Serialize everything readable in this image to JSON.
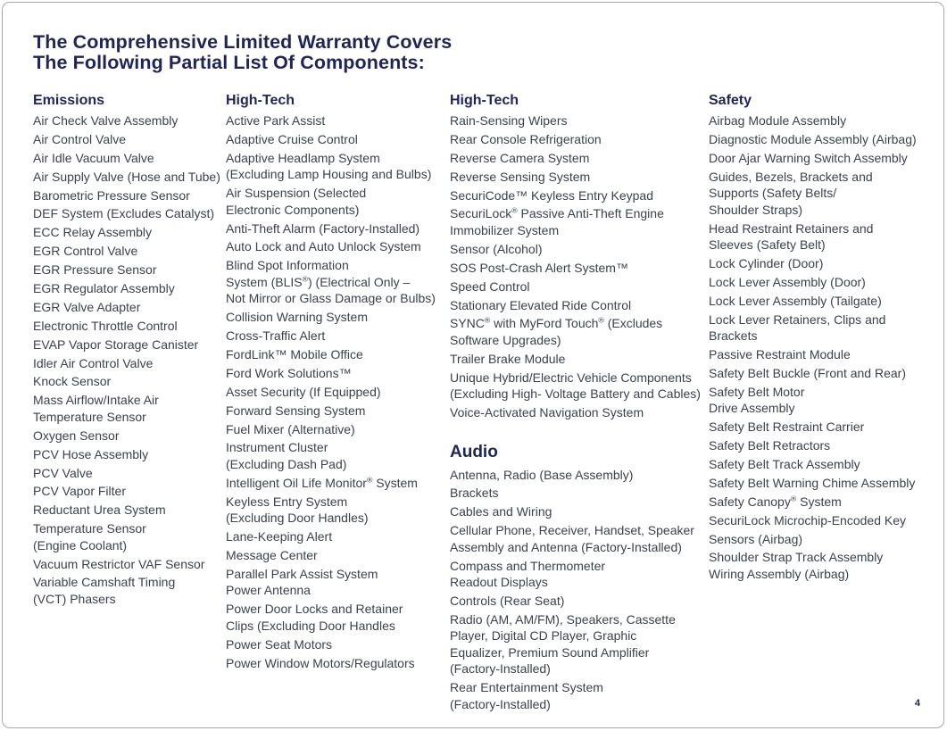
{
  "page": {
    "title_lines": [
      "The Comprehensive Limited Warranty Covers",
      "The Following Partial List Of Components:"
    ],
    "page_number": "4",
    "accent_color": "#1f2556",
    "body_text_color": "#3a424d"
  },
  "columns": [
    {
      "sections": [
        {
          "heading": "Emissions",
          "large_heading": false,
          "items": [
            [
              "Air Check Valve Assembly"
            ],
            [
              "Air Control Valve"
            ],
            [
              "Air Idle Vacuum Valve"
            ],
            [
              "Air Supply Valve (Hose and Tube)"
            ],
            [
              "Barometric Pressure Sensor"
            ],
            [
              "DEF System (Excludes Catalyst)"
            ],
            [
              "ECC Relay Assembly"
            ],
            [
              "EGR Control Valve"
            ],
            [
              "EGR Pressure Sensor"
            ],
            [
              "EGR Regulator Assembly"
            ],
            [
              "EGR Valve Adapter"
            ],
            [
              "Electronic Throttle Control"
            ],
            [
              "EVAP Vapor Storage Canister"
            ],
            [
              "Idler Air Control Valve"
            ],
            [
              "Knock Sensor"
            ],
            [
              "Mass Airflow/Intake Air",
              "Temperature Sensor"
            ],
            [
              "Oxygen Sensor"
            ],
            [
              "PCV Hose Assembly"
            ],
            [
              "PCV Valve"
            ],
            [
              "PCV Vapor Filter"
            ],
            [
              "Reductant Urea System"
            ],
            [
              "Temperature Sensor",
              "(Engine Coolant)"
            ],
            [
              "Vacuum Restrictor VAF Sensor"
            ],
            [
              "Variable Camshaft Timing",
              "(VCT) Phasers"
            ]
          ]
        }
      ]
    },
    {
      "sections": [
        {
          "heading": "High-Tech",
          "large_heading": false,
          "items": [
            [
              "Active Park Assist"
            ],
            [
              "Adaptive Cruise Control"
            ],
            [
              "Adaptive Headlamp System",
              "(Excluding Lamp Housing and Bulbs)"
            ],
            [
              "Air Suspension (Selected",
              "Electronic Components)"
            ],
            [
              "Anti-Theft Alarm (Factory-Installed)"
            ],
            [
              "Auto Lock and Auto Unlock System"
            ],
            [
              "Blind Spot Information",
              "System (BLIS®) (Electrical Only –",
              "Not Mirror or Glass Damage or Bulbs)"
            ],
            [
              "Collision Warning System"
            ],
            [
              "Cross-Traffic Alert"
            ],
            [
              "FordLink™ Mobile Office"
            ],
            [
              "Ford Work Solutions™"
            ],
            [
              "Asset Security (If Equipped)"
            ],
            [
              "Forward Sensing System"
            ],
            [
              "Fuel Mixer (Alternative)"
            ],
            [
              "Instrument Cluster",
              "(Excluding Dash Pad)"
            ],
            [
              "Intelligent Oil Life Monitor® System"
            ],
            [
              "Keyless Entry System",
              "(Excluding Door Handles)"
            ],
            [
              "Lane-Keeping Alert"
            ],
            [
              "Message Center"
            ],
            [
              "Parallel Park Assist System",
              "Power Antenna"
            ],
            [
              "Power Door Locks and Retainer",
              "Clips (Excluding Door Handles"
            ],
            [
              "Power Seat Motors"
            ],
            [
              "Power Window Motors/Regulators"
            ]
          ]
        }
      ]
    },
    {
      "sections": [
        {
          "heading": "High-Tech",
          "large_heading": false,
          "items": [
            [
              "Rain-Sensing Wipers"
            ],
            [
              "Rear Console Refrigeration"
            ],
            [
              "Reverse Camera System"
            ],
            [
              "Reverse Sensing System"
            ],
            [
              "SecuriCode™ Keyless Entry Keypad"
            ],
            [
              "SecuriLock® Passive Anti-Theft Engine",
              "Immobilizer System"
            ],
            [
              "Sensor (Alcohol)"
            ],
            [
              "SOS Post-Crash Alert System™"
            ],
            [
              "Speed Control"
            ],
            [
              "Stationary Elevated Ride Control"
            ],
            [
              "SYNC® with MyFord Touch® (Excludes",
              "Software Upgrades)"
            ],
            [
              "Trailer Brake Module"
            ],
            [
              "Unique Hybrid/Electric Vehicle Components",
              "(Excluding High- Voltage Battery and Cables)"
            ],
            [
              "Voice-Activated Navigation System"
            ]
          ]
        },
        {
          "heading": "Audio",
          "large_heading": true,
          "items": [
            [
              "Antenna, Radio (Base Assembly)"
            ],
            [
              "Brackets"
            ],
            [
              "Cables and Wiring"
            ],
            [
              "Cellular Phone, Receiver, Handset, Speaker",
              "Assembly and Antenna (Factory-Installed)"
            ],
            [
              "Compass and Thermometer",
              "Readout Displays"
            ],
            [
              "Controls (Rear Seat)"
            ],
            [
              "Radio (AM, AM/FM), Speakers, Cassette",
              "Player, Digital CD Player, Graphic",
              "Equalizer, Premium Sound Amplifier",
              "(Factory-Installed)"
            ],
            [
              "Rear Entertainment System",
              "(Factory-Installed)"
            ]
          ]
        }
      ]
    },
    {
      "sections": [
        {
          "heading": "Safety",
          "large_heading": false,
          "items": [
            [
              "Airbag Module Assembly"
            ],
            [
              "Diagnostic Module Assembly (Airbag)"
            ],
            [
              "Door Ajar Warning Switch Assembly"
            ],
            [
              "Guides, Bezels, Brackets and",
              "Supports (Safety Belts/",
              "Shoulder Straps)"
            ],
            [
              "Head Restraint Retainers and",
              "Sleeves (Safety Belt)"
            ],
            [
              "Lock Cylinder (Door)"
            ],
            [
              "Lock Lever Assembly (Door)"
            ],
            [
              "Lock Lever Assembly (Tailgate)"
            ],
            [
              "Lock Lever Retainers, Clips and",
              "Brackets"
            ],
            [
              "Passive Restraint Module"
            ],
            [
              "Safety Belt Buckle (Front and Rear)"
            ],
            [
              "Safety Belt Motor",
              "Drive Assembly"
            ],
            [
              "Safety Belt Restraint Carrier"
            ],
            [
              "Safety Belt Retractors"
            ],
            [
              "Safety Belt Track Assembly"
            ],
            [
              "Safety Belt Warning Chime Assembly"
            ],
            [
              "Safety Canopy® System"
            ],
            [
              "SecuriLock Microchip-Encoded Key"
            ],
            [
              "Sensors (Airbag)"
            ],
            [
              "Shoulder Strap Track Assembly",
              "Wiring Assembly (Airbag)"
            ]
          ]
        }
      ]
    }
  ]
}
